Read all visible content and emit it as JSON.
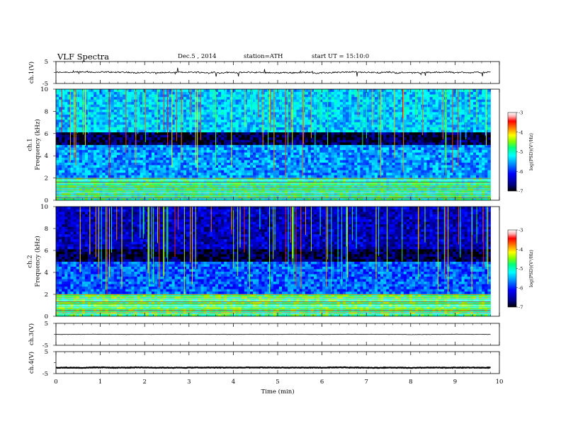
{
  "header": {
    "title": "VLF Spectra",
    "date": "Dec.5 , 2014",
    "station": "station=ATH",
    "start_ut": "start UT = 15:10:0"
  },
  "colors": {
    "waveform": "#000000",
    "colormap": [
      "#000000",
      "#000080",
      "#0000ff",
      "#00a0ff",
      "#00ffff",
      "#00ff80",
      "#80ff00",
      "#ffff00",
      "#ff8000",
      "#ff0000",
      "#ffb0b0",
      "#ffffff"
    ]
  },
  "chart_data": [
    {
      "type": "line",
      "panel": "ch1-waveform",
      "ylabel": "ch.1(V)",
      "yticks": [
        "5",
        "-5"
      ],
      "ylim": [
        -5,
        5
      ],
      "xlim": [
        0,
        10
      ],
      "x_span_min": [
        0,
        9.8
      ],
      "series": [
        {
          "baseline": 0,
          "noise_amplitude": 0.6
        }
      ]
    },
    {
      "type": "heatmap",
      "panel": "ch1-spectrogram",
      "ylabel": [
        "ch.1",
        "Frequency (kHz)"
      ],
      "yticks": [
        "0",
        "2",
        "4",
        "6",
        "8",
        "10"
      ],
      "ylim": [
        0,
        10
      ],
      "xlim": [
        0,
        10
      ],
      "x_span_min": [
        0,
        9.8
      ],
      "colorbar": {
        "label": "log(PSD)(V²/Hz)",
        "ticks": [
          "-3",
          "-4",
          "-5",
          "-6",
          "-7"
        ],
        "range": [
          -7,
          -3
        ]
      },
      "features": {
        "band_5_6_khz_level": -6.8,
        "band_2_5_khz_level": -5.6,
        "band_below_2_khz_level": -5.0,
        "band_above_6_khz_level": -5.4
      }
    },
    {
      "type": "heatmap",
      "panel": "ch2-spectrogram",
      "ylabel": [
        "ch.2",
        "Frequency (kHz)"
      ],
      "yticks": [
        "0",
        "2",
        "4",
        "6",
        "8",
        "10"
      ],
      "ylim": [
        0,
        10
      ],
      "xlim": [
        0,
        10
      ],
      "x_span_min": [
        0,
        9.8
      ],
      "colorbar": {
        "label": "log(PSD)(V²/Hz)",
        "ticks": [
          "-3",
          "-4",
          "-5",
          "-6",
          "-7"
        ],
        "range": [
          -7,
          -3
        ]
      },
      "features": {
        "band_5_6_khz_level": -6.8,
        "band_2_5_khz_level": -5.8,
        "band_below_2_khz_level": -4.8,
        "band_above_6_khz_level": -6.4
      }
    },
    {
      "type": "line",
      "panel": "ch3-waveform",
      "ylabel": "ch.3(V)",
      "yticks": [
        "5",
        "-5"
      ],
      "ylim": [
        -5,
        5
      ],
      "xlim": [
        0,
        10
      ],
      "x_span_min": [
        0,
        9.8
      ],
      "series": [
        {
          "baseline": 0,
          "noise_amplitude": 0.15
        }
      ]
    },
    {
      "type": "line",
      "panel": "ch4-waveform",
      "ylabel": "ch.4(V)",
      "yticks": [
        "5",
        "-5"
      ],
      "ylim": [
        -5,
        5
      ],
      "xlim": [
        0,
        10
      ],
      "x_span_min": [
        0,
        9.8
      ],
      "series": [
        {
          "baseline": -2.3,
          "noise_amplitude": 0.25
        }
      ]
    }
  ],
  "xaxis": {
    "label": "Time (min)",
    "ticks": [
      "0",
      "1",
      "2",
      "3",
      "4",
      "5",
      "6",
      "7",
      "8",
      "9",
      "10"
    ],
    "range": [
      0,
      10
    ]
  }
}
